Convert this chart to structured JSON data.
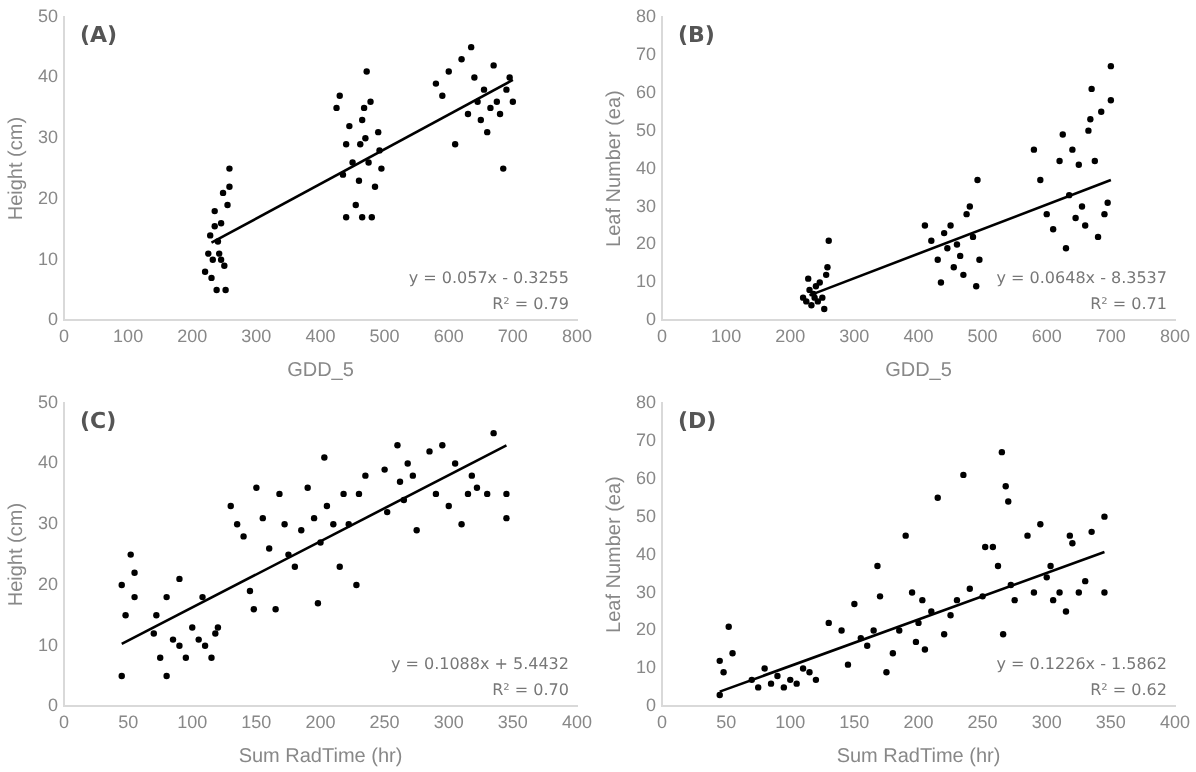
{
  "chart_data": [
    {
      "type": "scatter",
      "title": "(A)",
      "xlabel": "GDD_5",
      "ylabel": "Height (cm)",
      "xlim": [
        0,
        800
      ],
      "xticks": [
        0,
        100,
        200,
        300,
        400,
        500,
        600,
        700,
        800
      ],
      "ylim": [
        0,
        50
      ],
      "yticks": [
        0,
        10,
        20,
        30,
        40,
        50
      ],
      "grid": false,
      "legend": false,
      "marker": "circle",
      "annotations": [
        "y = 0.057x - 0.3255",
        "R² = 0.79"
      ],
      "series": [
        {
          "color": "#000000",
          "x": [
            220,
            225,
            228,
            230,
            232,
            235,
            238,
            240,
            242,
            245,
            248,
            250,
            252,
            255,
            258,
            258,
            235,
            245,
            425,
            430,
            435,
            440,
            445,
            450,
            455,
            460,
            462,
            465,
            468,
            470,
            472,
            475,
            478,
            480,
            485,
            490,
            492,
            495,
            440,
            465,
            580,
            590,
            600,
            610,
            620,
            630,
            635,
            640,
            645,
            650,
            655,
            660,
            665,
            670,
            675,
            680,
            685,
            690,
            695,
            700
          ],
          "values": [
            8,
            11,
            14,
            7,
            10,
            18,
            5,
            13,
            11,
            16,
            21,
            9,
            5,
            19,
            25,
            22,
            15.5,
            10,
            35,
            37,
            24,
            29,
            32,
            26,
            19,
            23,
            29,
            33,
            35,
            30,
            41,
            26,
            36,
            17,
            22,
            31,
            28,
            25,
            17,
            17,
            39,
            37,
            41,
            29,
            43,
            34,
            45,
            40,
            36,
            33,
            38,
            31,
            35,
            42,
            36,
            34,
            25,
            38,
            40,
            36
          ]
        },
        {
          "type": "line",
          "marker": "none",
          "color": "#000000",
          "line_style": "solid",
          "x": [
            230,
            700
          ],
          "values": [
            12.8,
            39.6
          ]
        }
      ]
    },
    {
      "type": "scatter",
      "title": "(B)",
      "xlabel": "GDD_5",
      "ylabel": "Leaf Number (ea)",
      "xlim": [
        0,
        800
      ],
      "xticks": [
        0,
        100,
        200,
        300,
        400,
        500,
        600,
        700,
        800
      ],
      "ylim": [
        0,
        80
      ],
      "yticks": [
        0,
        10,
        20,
        30,
        40,
        50,
        60,
        70,
        80
      ],
      "grid": false,
      "legend": false,
      "marker": "circle",
      "annotations": [
        "y = 0.0648x - 8.3537",
        "R² = 0.71"
      ],
      "series": [
        {
          "color": "#000000",
          "x": [
            220,
            225,
            228,
            230,
            233,
            236,
            240,
            243,
            246,
            250,
            253,
            256,
            258,
            260,
            238,
            410,
            420,
            430,
            435,
            440,
            445,
            450,
            455,
            460,
            465,
            470,
            475,
            480,
            485,
            490,
            492,
            495,
            580,
            590,
            600,
            610,
            620,
            625,
            630,
            635,
            640,
            645,
            650,
            655,
            660,
            665,
            668,
            670,
            675,
            680,
            685,
            690,
            695,
            700,
            700
          ],
          "values": [
            6,
            5,
            11,
            8,
            4,
            7,
            9,
            5,
            10,
            6,
            3,
            12,
            14,
            21,
            6,
            25,
            21,
            16,
            10,
            23,
            19,
            25,
            14,
            20,
            17,
            12,
            28,
            30,
            22,
            9,
            37,
            16,
            45,
            37,
            28,
            24,
            42,
            49,
            19,
            33,
            45,
            27,
            41,
            30,
            25,
            50,
            53,
            61,
            42,
            22,
            55,
            28,
            31,
            67,
            58
          ]
        },
        {
          "type": "line",
          "marker": "none",
          "color": "#000000",
          "line_style": "solid",
          "x": [
            230,
            700
          ],
          "values": [
            6.6,
            37
          ]
        }
      ]
    },
    {
      "type": "scatter",
      "title": "(C)",
      "xlabel": "Sum RadTime (hr)",
      "ylabel": "Height (cm)",
      "xlim": [
        0,
        400
      ],
      "xticks": [
        0,
        50,
        100,
        150,
        200,
        250,
        300,
        350,
        400
      ],
      "ylim": [
        0,
        50
      ],
      "yticks": [
        0,
        10,
        20,
        30,
        40,
        50
      ],
      "grid": false,
      "legend": false,
      "marker": "circle",
      "annotations": [
        "y = 0.1088x + 5.4432",
        "R² = 0.70"
      ],
      "series": [
        {
          "color": "#000000",
          "x": [
            45,
            45,
            48,
            52,
            55,
            55,
            70,
            72,
            75,
            80,
            80,
            85,
            90,
            90,
            95,
            100,
            105,
            108,
            110,
            115,
            118,
            120,
            130,
            135,
            140,
            145,
            148,
            150,
            155,
            160,
            165,
            168,
            172,
            175,
            180,
            185,
            190,
            195,
            198,
            200,
            203,
            205,
            210,
            215,
            218,
            222,
            228,
            230,
            235,
            250,
            252,
            260,
            262,
            265,
            268,
            272,
            275,
            285,
            290,
            295,
            300,
            305,
            310,
            315,
            318,
            322,
            330,
            335,
            345,
            345
          ],
          "values": [
            5,
            20,
            15,
            25,
            18,
            22,
            12,
            15,
            8,
            5,
            18,
            11,
            10,
            21,
            8,
            13,
            11,
            18,
            10,
            8,
            12,
            13,
            33,
            30,
            28,
            19,
            16,
            36,
            31,
            26,
            16,
            35,
            30,
            25,
            23,
            29,
            36,
            31,
            17,
            27,
            41,
            33,
            30,
            23,
            35,
            30,
            20,
            35,
            38,
            39,
            32,
            43,
            37,
            34,
            40,
            38,
            29,
            42,
            35,
            43,
            33,
            40,
            30,
            35,
            38,
            36,
            35,
            45,
            35,
            31
          ]
        },
        {
          "type": "line",
          "marker": "none",
          "color": "#000000",
          "line_style": "solid",
          "x": [
            45,
            345
          ],
          "values": [
            10.3,
            43
          ]
        }
      ]
    },
    {
      "type": "scatter",
      "title": "(D)",
      "xlabel": "Sum RadTime (hr)",
      "ylabel": "Leaf Number (ea)",
      "xlim": [
        0,
        400
      ],
      "xticks": [
        0,
        50,
        100,
        150,
        200,
        250,
        300,
        350,
        400
      ],
      "ylim": [
        0,
        80
      ],
      "yticks": [
        0,
        10,
        20,
        30,
        40,
        50,
        60,
        70,
        80
      ],
      "grid": false,
      "legend": false,
      "marker": "circle",
      "annotations": [
        "y = 0.1226x - 1.5862",
        "R² = 0.62"
      ],
      "series": [
        {
          "color": "#000000",
          "x": [
            45,
            45,
            48,
            52,
            55,
            70,
            75,
            80,
            85,
            90,
            95,
            100,
            105,
            110,
            115,
            120,
            130,
            140,
            145,
            150,
            155,
            160,
            165,
            168,
            170,
            175,
            180,
            185,
            190,
            195,
            198,
            200,
            203,
            205,
            210,
            215,
            220,
            225,
            230,
            235,
            240,
            250,
            252,
            258,
            262,
            265,
            266,
            268,
            270,
            272,
            275,
            285,
            290,
            295,
            300,
            303,
            305,
            310,
            315,
            318,
            320,
            325,
            330,
            335,
            345,
            345
          ],
          "values": [
            3,
            12,
            9,
            21,
            14,
            7,
            5,
            10,
            6,
            8,
            5,
            7,
            6,
            10,
            9,
            7,
            22,
            20,
            11,
            27,
            18,
            16,
            20,
            37,
            29,
            9,
            14,
            20,
            45,
            30,
            17,
            22,
            28,
            15,
            25,
            55,
            19,
            24,
            28,
            61,
            31,
            29,
            42,
            42,
            37,
            67,
            19,
            58,
            54,
            32,
            28,
            45,
            30,
            48,
            34,
            37,
            28,
            30,
            25,
            45,
            43,
            30,
            33,
            46,
            50,
            30
          ]
        },
        {
          "type": "line",
          "marker": "none",
          "color": "#000000",
          "line_style": "solid",
          "x": [
            45,
            345
          ],
          "values": [
            3.9,
            40.7
          ]
        }
      ]
    }
  ]
}
